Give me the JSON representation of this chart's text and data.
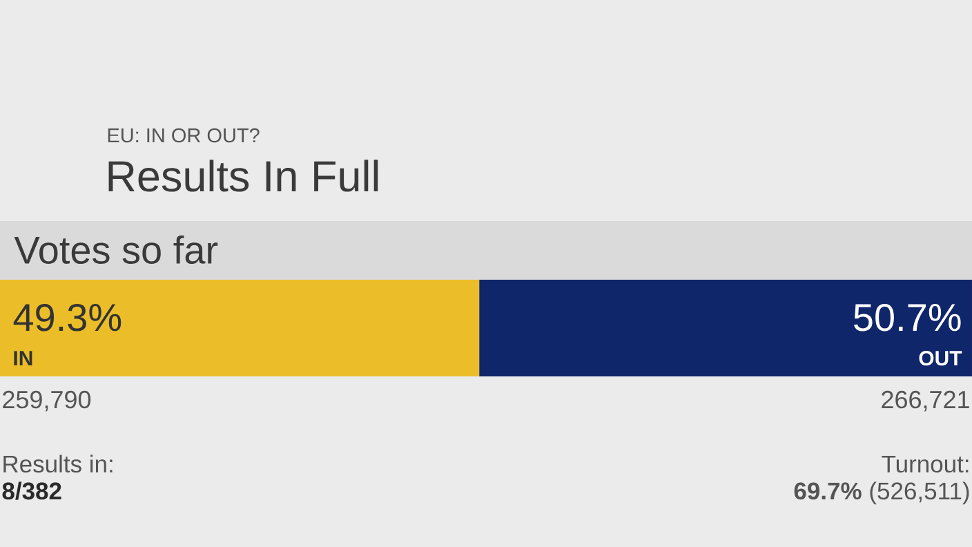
{
  "chart_data": {
    "type": "bar",
    "orientation": "horizontal",
    "stacked": true,
    "title": "EU: IN OR OUT?",
    "subtitle": "Results In Full",
    "categories": [
      null
    ],
    "series": [
      {
        "name": "IN",
        "color": "#ebbd29",
        "values": [
          49.3
        ],
        "value_labels": [
          "49.3%"
        ]
      },
      {
        "name": "OUT",
        "color": "#10266a",
        "values": [
          50.7
        ],
        "value_labels": [
          "50.7%"
        ]
      }
    ],
    "xlim": [
      0,
      100
    ],
    "annotations": [
      "Votes so far",
      "259,790",
      "266,721",
      "Results in:",
      "8/382",
      "Turnout:",
      "**69.7%** (526,511)"
    ]
  }
}
